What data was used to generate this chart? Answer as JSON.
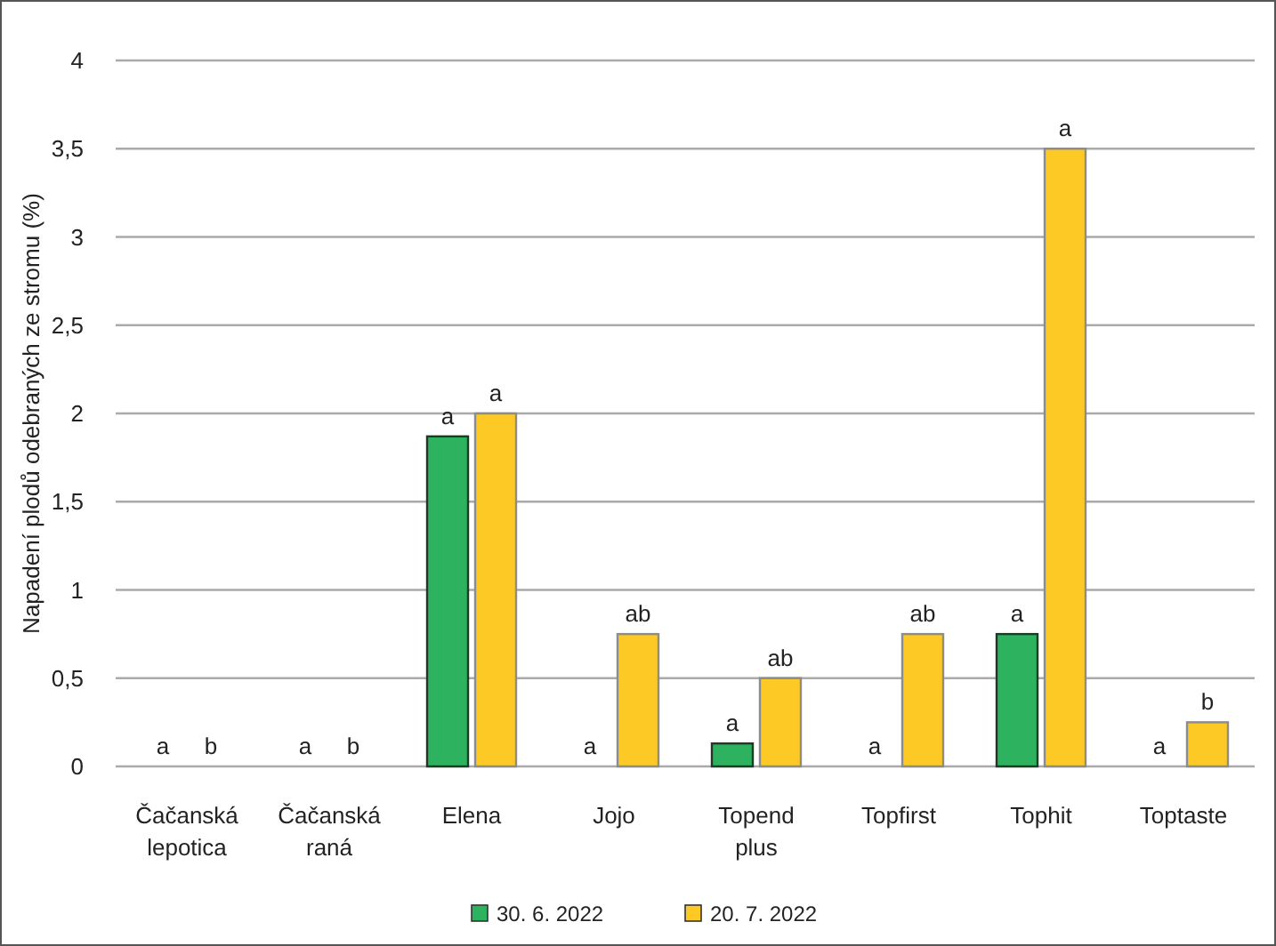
{
  "chart_data": {
    "type": "bar",
    "ylabel": "Napadení plodů odebraných ze stromu (%)",
    "categories": [
      "Čačanská lepotica",
      "Čačanská raná",
      "Elena",
      "Jojo",
      "Topend plus",
      "Topfirst",
      "Tophit",
      "Toptaste"
    ],
    "series": [
      {
        "name": "30. 6. 2022",
        "color": "#2db360",
        "values": [
          0,
          0,
          1.87,
          0,
          0.13,
          0,
          0.75,
          0
        ],
        "value_labels": [
          null,
          null,
          "a",
          null,
          "a",
          null,
          "a",
          null
        ]
      },
      {
        "name": "20. 7. 2022",
        "color": "#fcc925",
        "values": [
          0,
          0,
          2,
          0.75,
          0.5,
          0.75,
          3.5,
          0.25
        ],
        "value_labels": [
          null,
          null,
          "a",
          "ab",
          "ab",
          "ab",
          "a",
          "b"
        ]
      }
    ],
    "annotations": [
      {
        "text": "a",
        "x": "Čačanská lepotica",
        "y": 0
      },
      {
        "text": "b",
        "x": "Čačanská lepotica",
        "y": 0
      },
      {
        "text": "a",
        "x": "Čačanská raná",
        "y": 0
      },
      {
        "text": "b",
        "x": "Čačanská raná",
        "y": 0
      },
      {
        "text": "a",
        "x": "Jojo",
        "y": 0
      },
      {
        "text": "a",
        "x": "Topfirst",
        "y": 0
      },
      {
        "text": "a",
        "x": "Toptaste",
        "y": 0
      }
    ],
    "ylim": [
      0,
      4
    ],
    "yticks": [
      0,
      {
        "value": 0.5,
        "label": "0,5"
      },
      1,
      {
        "value": 1.5,
        "label": "1,5"
      },
      2,
      {
        "value": 2.5,
        "label": "2,5"
      },
      3,
      {
        "value": 3.5,
        "label": "3,5"
      },
      4
    ],
    "grid": "y",
    "legend": "bottom"
  }
}
